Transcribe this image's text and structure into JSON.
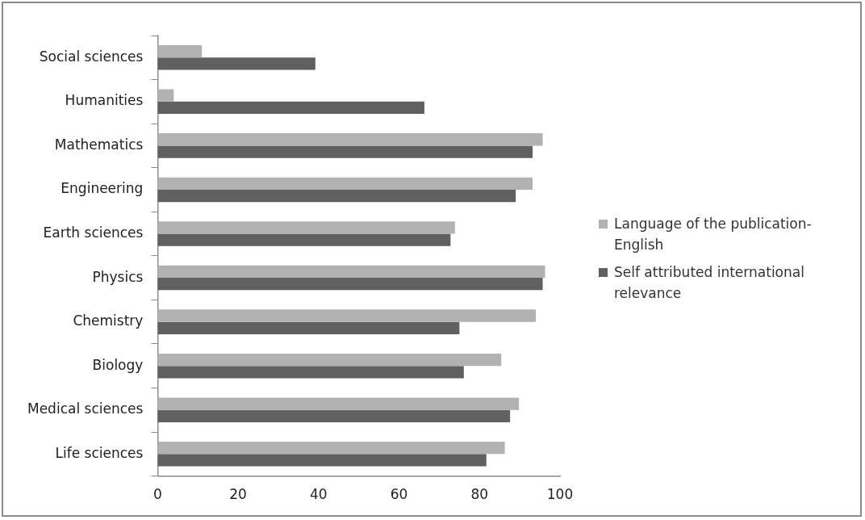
{
  "chart_data": {
    "type": "bar",
    "orientation": "horizontal",
    "categories": [
      "Social sciences",
      "Humanities",
      "Mathematics",
      "Engineering",
      "Earth sciences",
      "Physics",
      "Chemistry",
      "Biology",
      "Medical sciences",
      "Life sciences"
    ],
    "series": [
      {
        "name": "Language of the publication-English",
        "color": "#b2b2b2",
        "values": [
          11,
          4,
          95.7,
          93.2,
          73.9,
          96.3,
          94,
          85.4,
          89.8,
          86.3
        ]
      },
      {
        "name": "Self attributed international relevance",
        "color": "#606060",
        "values": [
          39.2,
          66.3,
          93.2,
          89,
          72.8,
          95.7,
          75,
          76.1,
          87.6,
          81.7
        ]
      }
    ],
    "xlim": [
      0,
      100
    ],
    "xticks": [
      0,
      20,
      40,
      60,
      80,
      100
    ],
    "grid": false,
    "legend": "right"
  }
}
